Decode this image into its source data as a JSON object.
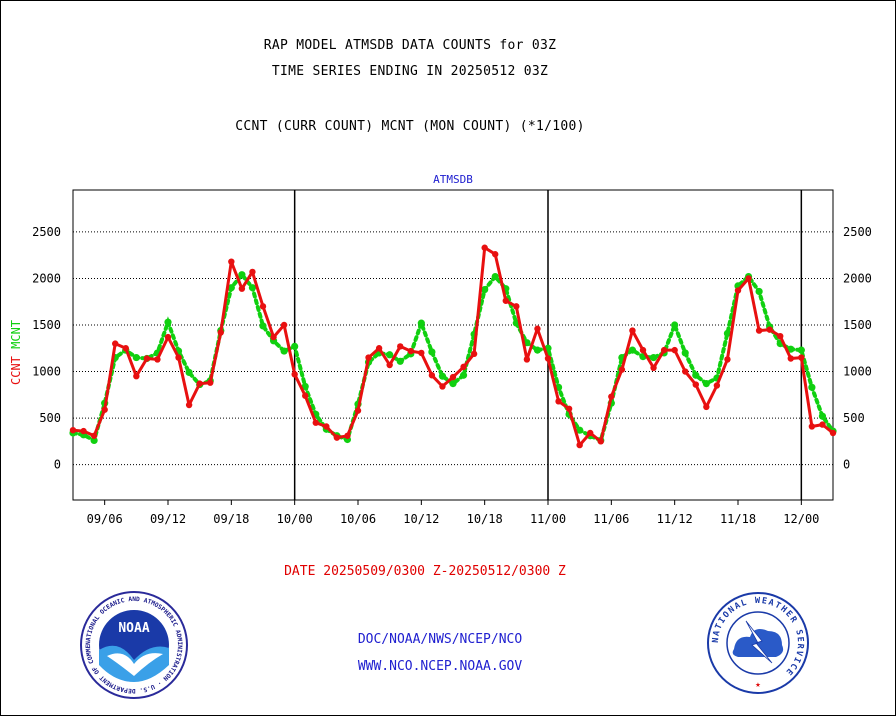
{
  "header": {
    "line1": "RAP MODEL ATMSDB DATA COUNTS for 03Z",
    "line2": "TIME SERIES ENDING IN 20250512 03Z",
    "line3": "CCNT (CURR COUNT) MCNT (MON COUNT) (*1/100)"
  },
  "footer": {
    "date_range": "DATE 20250509/0300 Z-20250512/0300 Z",
    "org_path": "DOC/NOAA/NWS/NCEP/NCO",
    "website": "WWW.NCO.NCEP.NOAA.GOV",
    "noaa_logo_text": "NOAA",
    "noaa_ring_text": "NATIONAL OCEANIC AND ATMOSPHERIC ADMINISTRATION · U.S. DEPARTMENT OF COMMERCE ·",
    "nws_ring_text": "NATIONAL WEATHER SERVICE"
  },
  "colors": {
    "ccnt": "#e81010",
    "mcnt": "#10d010",
    "station_label": "#2020d0",
    "date_range": "#e00000"
  },
  "chart_data": {
    "type": "line",
    "title": "ATMSDB",
    "ylabel_parts": [
      {
        "text": "CCNT",
        "color": "#e81010"
      },
      {
        "text": "MCNT",
        "color": "#10d010"
      }
    ],
    "ylim": [
      -380,
      2950
    ],
    "yticks": [
      0,
      500,
      1000,
      1500,
      2000,
      2500
    ],
    "grid": true,
    "x_tick_labels": [
      "09/06",
      "09/12",
      "09/18",
      "10/00",
      "10/06",
      "10/12",
      "10/18",
      "11/00",
      "11/06",
      "11/12",
      "11/18",
      "12/00"
    ],
    "day_boundaries": [
      "10/00",
      "11/00",
      "12/00"
    ],
    "x_start": "09/03",
    "x_end": "12/03",
    "series": [
      {
        "name": "CCNT",
        "color": "#e81010",
        "style": "solid",
        "values": [
          [
            "09/03",
            370
          ],
          [
            "09/04",
            360
          ],
          [
            "09/05",
            310
          ],
          [
            "09/06",
            590
          ],
          [
            "09/07",
            1300
          ],
          [
            "09/08",
            1250
          ],
          [
            "09/09",
            950
          ],
          [
            "09/10",
            1140
          ],
          [
            "09/11",
            1130
          ],
          [
            "09/12",
            1370
          ],
          [
            "09/13",
            1150
          ],
          [
            "09/14",
            640
          ],
          [
            "09/15",
            870
          ],
          [
            "09/16",
            880
          ],
          [
            "09/17",
            1420
          ],
          [
            "09/18",
            2180
          ],
          [
            "09/19",
            1890
          ],
          [
            "09/20",
            2070
          ],
          [
            "09/21",
            1700
          ],
          [
            "09/22",
            1370
          ],
          [
            "09/23",
            1500
          ],
          [
            "10/00",
            970
          ],
          [
            "10/01",
            740
          ],
          [
            "10/02",
            450
          ],
          [
            "10/03",
            410
          ],
          [
            "10/04",
            290
          ],
          [
            "10/05",
            310
          ],
          [
            "10/06",
            580
          ],
          [
            "10/07",
            1150
          ],
          [
            "10/08",
            1250
          ],
          [
            "10/09",
            1070
          ],
          [
            "10/10",
            1270
          ],
          [
            "10/11",
            1220
          ],
          [
            "10/12",
            1200
          ],
          [
            "10/13",
            960
          ],
          [
            "10/14",
            840
          ],
          [
            "10/15",
            940
          ],
          [
            "10/16",
            1050
          ],
          [
            "10/17",
            1190
          ],
          [
            "10/18",
            2330
          ],
          [
            "10/19",
            2260
          ],
          [
            "10/20",
            1760
          ],
          [
            "10/21",
            1700
          ],
          [
            "10/22",
            1130
          ],
          [
            "10/23",
            1460
          ],
          [
            "11/00",
            1140
          ],
          [
            "11/01",
            680
          ],
          [
            "11/02",
            600
          ],
          [
            "11/03",
            210
          ],
          [
            "11/04",
            340
          ],
          [
            "11/05",
            250
          ],
          [
            "11/06",
            730
          ],
          [
            "11/07",
            1020
          ],
          [
            "11/08",
            1440
          ],
          [
            "11/09",
            1230
          ],
          [
            "11/10",
            1040
          ],
          [
            "11/11",
            1230
          ],
          [
            "11/12",
            1230
          ],
          [
            "11/13",
            1000
          ],
          [
            "11/14",
            860
          ],
          [
            "11/15",
            620
          ],
          [
            "11/16",
            850
          ],
          [
            "11/17",
            1130
          ],
          [
            "11/18",
            1870
          ],
          [
            "11/19",
            2000
          ],
          [
            "11/20",
            1440
          ],
          [
            "11/21",
            1450
          ],
          [
            "11/22",
            1380
          ],
          [
            "11/23",
            1140
          ],
          [
            "12/00",
            1150
          ],
          [
            "12/01",
            410
          ],
          [
            "12/02",
            430
          ],
          [
            "12/03",
            340
          ]
        ]
      },
      {
        "name": "MCNT",
        "color": "#10d010",
        "style": "dotted",
        "values": [
          [
            "09/03",
            340
          ],
          [
            "09/04",
            320
          ],
          [
            "09/05",
            260
          ],
          [
            "09/06",
            660
          ],
          [
            "09/07",
            1150
          ],
          [
            "09/08",
            1230
          ],
          [
            "09/09",
            1150
          ],
          [
            "09/10",
            1140
          ],
          [
            "09/11",
            1200
          ],
          [
            "09/12",
            1530
          ],
          [
            "09/13",
            1220
          ],
          [
            "09/14",
            990
          ],
          [
            "09/15",
            860
          ],
          [
            "09/16",
            900
          ],
          [
            "09/17",
            1440
          ],
          [
            "09/18",
            1900
          ],
          [
            "09/19",
            2040
          ],
          [
            "09/20",
            1900
          ],
          [
            "09/21",
            1490
          ],
          [
            "09/22",
            1330
          ],
          [
            "09/23",
            1220
          ],
          [
            "10/00",
            1270
          ],
          [
            "10/01",
            840
          ],
          [
            "10/02",
            540
          ],
          [
            "10/03",
            380
          ],
          [
            "10/04",
            310
          ],
          [
            "10/05",
            270
          ],
          [
            "10/06",
            650
          ],
          [
            "10/07",
            1100
          ],
          [
            "10/08",
            1200
          ],
          [
            "10/09",
            1180
          ],
          [
            "10/10",
            1110
          ],
          [
            "10/11",
            1190
          ],
          [
            "10/12",
            1520
          ],
          [
            "10/13",
            1210
          ],
          [
            "10/14",
            950
          ],
          [
            "10/15",
            870
          ],
          [
            "10/16",
            960
          ],
          [
            "10/17",
            1400
          ],
          [
            "10/18",
            1880
          ],
          [
            "10/19",
            2020
          ],
          [
            "10/20",
            1890
          ],
          [
            "10/21",
            1520
          ],
          [
            "10/22",
            1310
          ],
          [
            "10/23",
            1230
          ],
          [
            "11/00",
            1250
          ],
          [
            "11/01",
            830
          ],
          [
            "11/02",
            540
          ],
          [
            "11/03",
            370
          ],
          [
            "11/04",
            310
          ],
          [
            "11/05",
            260
          ],
          [
            "11/06",
            660
          ],
          [
            "11/07",
            1150
          ],
          [
            "11/08",
            1230
          ],
          [
            "11/09",
            1160
          ],
          [
            "11/10",
            1150
          ],
          [
            "11/11",
            1200
          ],
          [
            "11/12",
            1500
          ],
          [
            "11/13",
            1200
          ],
          [
            "11/14",
            960
          ],
          [
            "11/15",
            870
          ],
          [
            "11/16",
            930
          ],
          [
            "11/17",
            1410
          ],
          [
            "11/18",
            1920
          ],
          [
            "11/19",
            2020
          ],
          [
            "11/20",
            1860
          ],
          [
            "11/21",
            1480
          ],
          [
            "11/22",
            1300
          ],
          [
            "11/23",
            1240
          ],
          [
            "12/00",
            1230
          ],
          [
            "12/01",
            830
          ],
          [
            "12/02",
            520
          ],
          [
            "12/03",
            360
          ]
        ]
      }
    ]
  }
}
